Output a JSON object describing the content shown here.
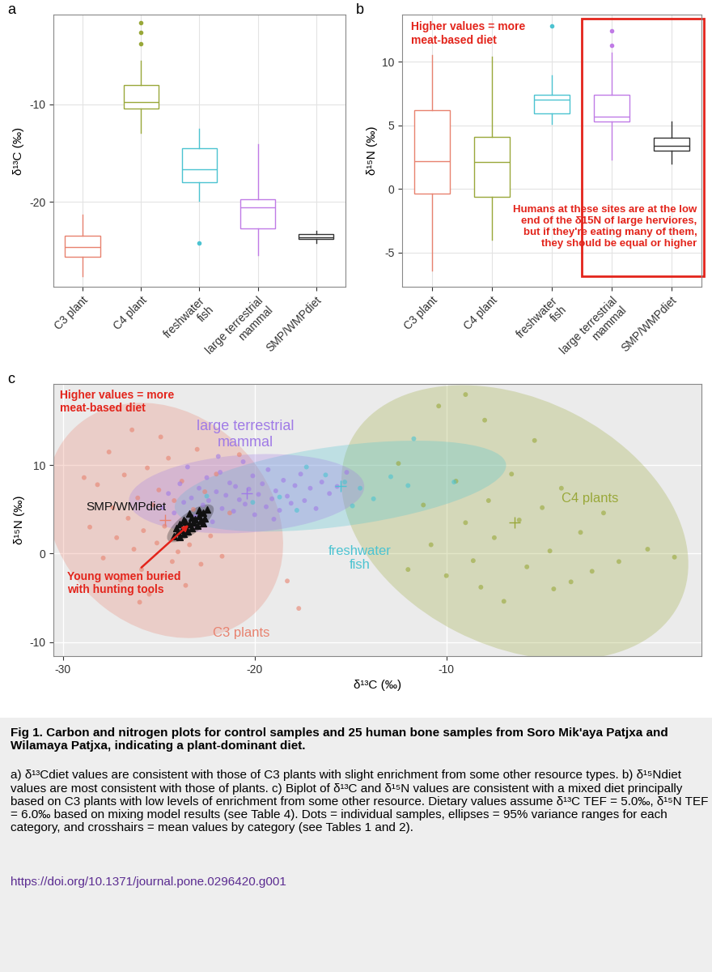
{
  "chart_data": [
    {
      "type": "box",
      "title": "a",
      "ylabel": "δ¹³C (‰)",
      "categories": [
        "C3 plant",
        "C4 plant",
        "freshwater\nfish",
        "large terrestrial\nmammal",
        "SMP/WMPdiet"
      ],
      "colors": [
        "#E8826F",
        "#99A83A",
        "#4CC3D1",
        "#C07BE6",
        "#333333"
      ],
      "boxes": [
        {
          "whislo": -27.6,
          "q1": -25.6,
          "med": -24.6,
          "q3": -23.5,
          "whishi": -21.3,
          "fliers": []
        },
        {
          "whislo": -12.9,
          "q1": -10.4,
          "med": -9.8,
          "q3": -8.0,
          "whishi": -5.5,
          "fliers": [
            -3.75,
            -2.6,
            -1.6
          ]
        },
        {
          "whislo": -19.9,
          "q1": -18.0,
          "med": -16.7,
          "q3": -14.5,
          "whishi": -12.5,
          "fliers": [
            -24.2
          ]
        },
        {
          "whislo": -25.5,
          "q1": -22.7,
          "med": -20.6,
          "q3": -19.7,
          "whishi": -14.1,
          "fliers": []
        },
        {
          "whislo": -24.2,
          "q1": -23.8,
          "med": -23.6,
          "q3": -23.3,
          "whishi": -23.0,
          "fliers": []
        }
      ],
      "ylim": [
        -28.7,
        -0.8
      ],
      "yticks": [
        -20,
        -10
      ],
      "grid": true
    },
    {
      "type": "box",
      "title": "b",
      "ylabel": "δ¹⁵N (‰)",
      "categories": [
        "C3 plant",
        "C4 plant",
        "freshwater\nfish",
        "large terrestrial\nmammal",
        "SMP/WMPdiet"
      ],
      "colors": [
        "#E8826F",
        "#99A83A",
        "#4CC3D1",
        "#C07BE6",
        "#333333"
      ],
      "boxes": [
        {
          "whislo": -6.4,
          "q1": -0.4,
          "med": 2.2,
          "q3": 6.2,
          "whishi": 10.5,
          "fliers": []
        },
        {
          "whislo": -4.0,
          "q1": -0.6,
          "med": 2.1,
          "q3": 4.1,
          "whishi": 10.4,
          "fliers": []
        },
        {
          "whislo": 5.1,
          "q1": 5.9,
          "med": 7.0,
          "q3": 7.4,
          "whishi": 8.9,
          "fliers": [
            12.8
          ]
        },
        {
          "whislo": 2.3,
          "q1": 5.3,
          "med": 5.7,
          "q3": 7.4,
          "whishi": 10.7,
          "fliers": [
            11.3,
            12.4
          ]
        },
        {
          "whislo": 2.0,
          "q1": 3.0,
          "med": 3.4,
          "q3": 4.0,
          "whishi": 5.3,
          "fliers": []
        }
      ],
      "ylim": [
        -7.7,
        13.7
      ],
      "yticks": [
        -5,
        0,
        5,
        10
      ],
      "grid": true,
      "annotations": [
        {
          "text": "Higher values = more\nmeat-based diet"
        },
        {
          "text": "Humans at these sites are at the low\nend of the δ15N of large herviores,\nbut if they're eating many of them,\nthey should be equal or higher"
        }
      ]
    },
    {
      "type": "scatter",
      "title": "c",
      "xlabel": "δ¹³C (‰)",
      "ylabel": "δ¹⁵N (‰)",
      "xlim": [
        -30.5,
        3.3
      ],
      "xticks": [
        -30,
        -20,
        -10
      ],
      "ylim": [
        -11.6,
        19.2
      ],
      "yticks": [
        -10,
        0,
        10
      ],
      "grid": true,
      "series": [
        {
          "name": "C3 plants",
          "color": "#E8826F",
          "marker": "circle",
          "x": [
            -28.6,
            -28.2,
            -27.9,
            -27.6,
            -27.4,
            -27.2,
            -27.0,
            -26.8,
            -26.6,
            -26.4,
            -26.3,
            -26.1,
            -25.9,
            -25.8,
            -25.6,
            -25.5,
            -25.3,
            -25.1,
            -25.0,
            -24.8,
            -24.7,
            -24.5,
            -24.3,
            -24.2,
            -24.0,
            -23.8,
            -23.6,
            -23.4,
            -23.2,
            -23.0,
            -22.8,
            -22.6,
            -22.3,
            -22.0,
            -21.7,
            -21.3,
            -20.8,
            -18.3,
            -17.7,
            -26.0,
            -28.9,
            -24.9
          ],
          "y": [
            3.0,
            7.8,
            -0.5,
            11.5,
            5.2,
            1.8,
            -3.0,
            8.9,
            4.0,
            14.0,
            0.5,
            6.3,
            -1.8,
            2.6,
            9.7,
            -4.6,
            5.5,
            1.2,
            7.2,
            -2.5,
            3.1,
            10.8,
            -0.9,
            6.0,
            0.2,
            8.2,
            -3.6,
            1.0,
            5.0,
            11.8,
            -1.2,
            7.0,
            2.0,
            9.0,
            -0.3,
            4.6,
            11.2,
            -3.1,
            -6.2,
            -5.5,
            8.6,
            13.2
          ]
        },
        {
          "name": "C4 plants",
          "color": "#99A83A",
          "marker": "circle",
          "x": [
            -9.0,
            -10.4,
            -8.0,
            -12.5,
            -11.2,
            -10.8,
            -10.0,
            -9.5,
            -9.0,
            -8.6,
            -8.2,
            -7.8,
            -7.5,
            -7.0,
            -6.6,
            -6.2,
            -5.8,
            -5.4,
            -5.0,
            -4.6,
            -4.0,
            -3.5,
            -3.0,
            -2.4,
            -1.8,
            -1.0,
            0.5,
            1.9,
            -12.0,
            -4.4
          ],
          "y": [
            18.0,
            16.7,
            15.1,
            10.2,
            5.5,
            1.0,
            -2.5,
            8.2,
            3.5,
            -0.8,
            -3.8,
            6.0,
            1.8,
            -5.4,
            9.0,
            3.8,
            -1.5,
            12.8,
            5.2,
            0.3,
            7.4,
            -3.2,
            2.4,
            -2.0,
            4.6,
            -0.9,
            0.5,
            -0.4,
            -1.8,
            -4.0
          ]
        },
        {
          "name": "freshwater\nfish",
          "color": "#4CC3D1",
          "marker": "circle",
          "x": [
            -22.5,
            -20.1,
            -18.7,
            -17.3,
            -16.3,
            -15.3,
            -14.5,
            -13.8,
            -12.9,
            -12.0,
            -11.7,
            -9.6,
            -17.8,
            -14.9
          ],
          "y": [
            6.5,
            5.8,
            6.4,
            9.8,
            8.9,
            8.1,
            7.4,
            6.2,
            8.7,
            7.7,
            13.0,
            8.1,
            4.9,
            5.4
          ]
        },
        {
          "name": "large terrestrial\nmammal",
          "color": "#A07BE6",
          "marker": "circle",
          "x": [
            -24.8,
            -24.5,
            -24.2,
            -23.9,
            -23.7,
            -23.5,
            -23.3,
            -23.1,
            -22.9,
            -22.7,
            -22.5,
            -22.4,
            -22.2,
            -22.0,
            -21.8,
            -21.7,
            -21.5,
            -21.3,
            -21.1,
            -21.0,
            -20.8,
            -20.6,
            -20.5,
            -20.3,
            -20.1,
            -20.0,
            -19.8,
            -19.6,
            -19.4,
            -19.3,
            -19.1,
            -18.9,
            -18.7,
            -18.5,
            -18.3,
            -18.1,
            -17.9,
            -17.6,
            -17.4,
            -17.1,
            -16.8,
            -16.5,
            -16.1,
            -15.7,
            -15.2,
            -21.9,
            -23.0,
            -19.0
          ],
          "y": [
            5.2,
            6.8,
            4.6,
            7.9,
            5.8,
            9.8,
            6.3,
            4.2,
            7.4,
            5.5,
            8.6,
            6.0,
            3.6,
            7.0,
            9.2,
            5.1,
            6.6,
            8.0,
            4.8,
            7.6,
            6.1,
            10.4,
            5.6,
            7.3,
            8.8,
            4.4,
            6.7,
            7.9,
            5.3,
            9.5,
            6.2,
            7.1,
            4.9,
            8.3,
            6.5,
            5.7,
            7.7,
            9.0,
            6.0,
            7.4,
            5.1,
            8.1,
            6.8,
            7.6,
            9.2,
            11.0,
            3.0,
            3.9
          ]
        },
        {
          "name": "SMP/WMPdiet",
          "color": "#111111",
          "marker": "triangle",
          "x": [
            -24.2,
            -24.0,
            -23.9,
            -23.8,
            -23.7,
            -23.6,
            -23.5,
            -23.4,
            -23.6,
            -23.3,
            -23.2,
            -23.1,
            -23.3,
            -23.0,
            -22.9,
            -22.8,
            -22.7,
            -22.6,
            -22.5,
            -23.9,
            -24.1,
            -22.9,
            -23.4,
            -22.7,
            -23.7
          ],
          "y": [
            2.0,
            2.4,
            1.9,
            2.7,
            2.2,
            3.0,
            2.5,
            3.3,
            3.6,
            2.9,
            3.5,
            3.9,
            4.1,
            3.2,
            4.3,
            3.7,
            4.6,
            4.0,
            5.0,
            3.3,
            2.9,
            4.9,
            4.5,
            3.4,
            3.8
          ]
        }
      ],
      "annotations": [
        {
          "text": "Higher values = more\nmeat-based diet"
        },
        {
          "text": "Young women buried\nwith hunting tools"
        }
      ]
    }
  ],
  "caption": {
    "title": "Fig 1. Carbon and nitrogen plots for control samples and 25 human bone samples from Soro Mik'aya Patjxa and Wilamaya Patjxa, indicating a plant-dominant diet.",
    "text": "a) δ¹³Cdiet values are consistent with those of C3 plants with slight enrichment from some other resource types. b) δ¹⁵Ndiet values are most consistent with those of plants. c) Biplot of δ¹³C and δ¹⁵N values are consistent with a mixed diet principally based on C3 plants with low levels of enrichment from some other resource. Dietary values assume δ¹³C TEF = 5.0‰, δ¹⁵N TEF = 6.0‰ based on mixing model results (see Table 4). Dots = individual samples, ellipses = 95% variance ranges for each category, and crosshairs = mean values by category (see Tables 1 and 2).",
    "link": "https://doi.org/10.1371/journal.pone.0296420.g001"
  }
}
